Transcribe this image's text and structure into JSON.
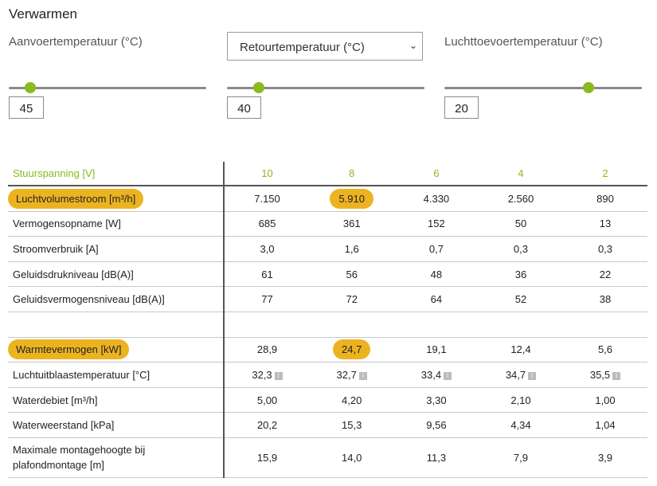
{
  "heading": "Verwarmen",
  "sliders": [
    {
      "label": "Aanvoertemperatuur (°C)",
      "value": "45",
      "level": 0.11
    },
    {
      "label": "Retourtemperatuur (°C)",
      "value": "40",
      "level": 0.16
    },
    {
      "label": "Luchttoevoertemperatuur (°C)",
      "value": "20",
      "level": 0.73
    }
  ],
  "select_chevron": "⌄",
  "info_glyph": "i",
  "table": {
    "header_label": "Stuurspanning [V]",
    "header_values": [
      "10",
      "8",
      "6",
      "4",
      "2"
    ],
    "rows": [
      {
        "label": "Luchtvolumestroom [m³/h]",
        "values": [
          "7.150",
          "5.910",
          "4.330",
          "2.560",
          "890"
        ]
      },
      {
        "label": "Vermogensopname [W]",
        "values": [
          "685",
          "361",
          "152",
          "50",
          "13"
        ]
      },
      {
        "label": "Stroomverbruik [A]",
        "values": [
          "3,0",
          "1,6",
          "0,7",
          "0,3",
          "0,3"
        ]
      },
      {
        "label": "Geluidsdrukniveau [dB(A)]",
        "values": [
          "61",
          "56",
          "48",
          "36",
          "22"
        ]
      },
      {
        "label": "Geluidsvermogensniveau [dB(A)]",
        "values": [
          "77",
          "72",
          "64",
          "52",
          "38"
        ]
      },
      {
        "label": "Warmtevermogen [kW]",
        "values": [
          "28,9",
          "24,7",
          "19,1",
          "12,4",
          "5,6"
        ]
      },
      {
        "label": "Luchtuitblaastemperatuur [°C]",
        "values": [
          "32,3",
          "32,7",
          "33,4",
          "34,7",
          "35,5"
        ]
      },
      {
        "label": "Waterdebiet [m³/h]",
        "values": [
          "5,00",
          "4,20",
          "3,30",
          "2,10",
          "1,00"
        ]
      },
      {
        "label": "Waterweerstand [kPa]",
        "values": [
          "20,2",
          "15,3",
          "9,56",
          "4,34",
          "1,04"
        ]
      },
      {
        "label_line1": "Maximale montagehoogte bij",
        "label_line2": "plafondmontage [m]",
        "values": [
          "15,9",
          "14,0",
          "11,3",
          "7,9",
          "3,9"
        ]
      }
    ]
  }
}
